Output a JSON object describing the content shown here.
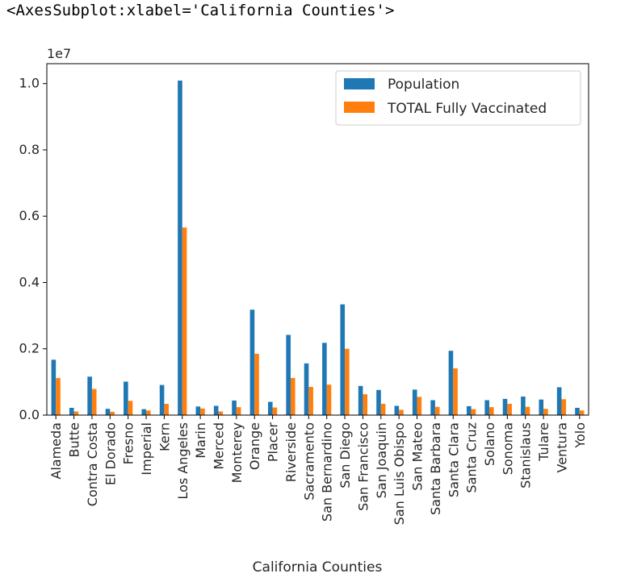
{
  "output_repr": "<AxesSubplot:xlabel='California Counties'>",
  "chart_data": {
    "type": "bar",
    "xlabel": "California Counties",
    "ylabel": "",
    "offset_text": "1e7",
    "ylim": [
      0,
      1.06
    ],
    "yticks": [
      "0.0",
      "0.2",
      "0.4",
      "0.6",
      "0.8",
      "1.0"
    ],
    "ytick_values": [
      0,
      0.2,
      0.4,
      0.6,
      0.8,
      1.0
    ],
    "legend_position": "top-right",
    "categories": [
      "Alameda",
      "Butte",
      "Contra Costa",
      "El Dorado",
      "Fresno",
      "Imperial",
      "Kern",
      "Los Angeles",
      "Marin",
      "Merced",
      "Monterey",
      "Orange",
      "Placer",
      "Riverside",
      "Sacramento",
      "San Bernardino",
      "San Diego",
      "San Francisco",
      "San Joaquin",
      "San Luis Obispo",
      "San Mateo",
      "Santa Barbara",
      "Santa Clara",
      "Santa Cruz",
      "Solano",
      "Sonoma",
      "Stanislaus",
      "Tulare",
      "Ventura",
      "Yolo"
    ],
    "series": [
      {
        "name": "Population",
        "color": "#1f77b4",
        "values": [
          0.167,
          0.022,
          0.116,
          0.019,
          0.101,
          0.018,
          0.091,
          1.009,
          0.026,
          0.028,
          0.044,
          0.318,
          0.04,
          0.242,
          0.156,
          0.218,
          0.334,
          0.088,
          0.076,
          0.028,
          0.077,
          0.045,
          0.194,
          0.027,
          0.045,
          0.049,
          0.056,
          0.047,
          0.084,
          0.022
        ]
      },
      {
        "name": "TOTAL Fully Vaccinated",
        "color": "#ff7f0e",
        "values": [
          0.112,
          0.011,
          0.079,
          0.01,
          0.043,
          0.014,
          0.034,
          0.566,
          0.02,
          0.011,
          0.024,
          0.185,
          0.023,
          0.112,
          0.085,
          0.092,
          0.2,
          0.063,
          0.034,
          0.016,
          0.055,
          0.025,
          0.141,
          0.018,
          0.024,
          0.034,
          0.025,
          0.019,
          0.048,
          0.014
        ]
      }
    ]
  }
}
